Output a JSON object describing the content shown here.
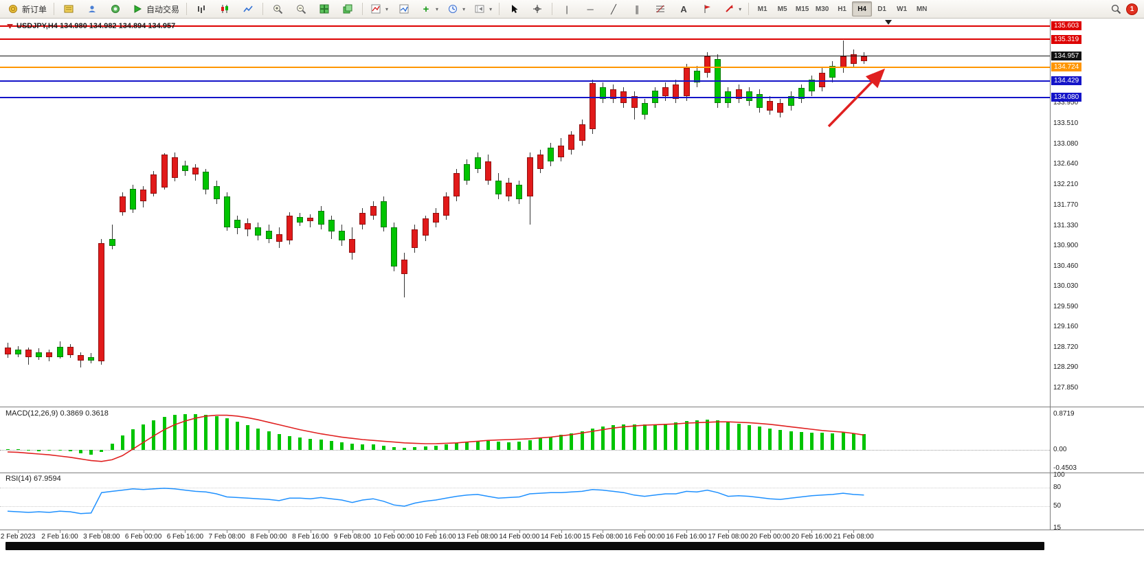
{
  "toolbar": {
    "new_order_label": "新订单",
    "autotrade_label": "自动交易",
    "timeframes": [
      "M1",
      "M5",
      "M15",
      "M30",
      "H1",
      "H4",
      "D1",
      "W1",
      "MN"
    ],
    "active_timeframe": "H4",
    "notification_count": "1",
    "glyphs": {
      "zoom_in": "+",
      "zoom_out": "−",
      "add_indicator": "+",
      "text_tool": "A",
      "vertical_line": "|",
      "horizontal_line": "─",
      "trend_line": "╱",
      "channel": "∥",
      "dropdown": "▾",
      "crosshair": "+"
    }
  },
  "chart_data": {
    "type": "candlestick",
    "symbol": "USDJPY",
    "timeframe": "H4",
    "header": "USDJPY,H4 134.980 134.982 134.894 134.957",
    "up_color": "#00c400",
    "down_color": "#e11a1a",
    "wick_color": "#333333",
    "price_axis_ticks": [
      "133.950",
      "133.510",
      "133.080",
      "132.640",
      "132.210",
      "131.770",
      "131.330",
      "130.900",
      "130.460",
      "130.030",
      "129.590",
      "129.160",
      "128.720",
      "128.290",
      "127.850"
    ],
    "price_badges": [
      {
        "value": "135.603",
        "color": "#dd0000",
        "kind": "resistance-line-label"
      },
      {
        "value": "135.319",
        "color": "#dd0000",
        "kind": "resistance-line-label"
      },
      {
        "value": "134.957",
        "color": "#111111",
        "kind": "current-price-label"
      },
      {
        "value": "134.724",
        "color": "#ff9500",
        "kind": "pivot-line-label"
      },
      {
        "value": "134.429",
        "color": "#1414c8",
        "kind": "support-line-label"
      },
      {
        "value": "134.080",
        "color": "#1414c8",
        "kind": "support-line-label"
      }
    ],
    "hlines": [
      {
        "price": 135.603,
        "color": "#dd0000",
        "w": 2,
        "name": "resistance-line"
      },
      {
        "price": 135.319,
        "color": "#dd0000",
        "w": 2,
        "name": "resistance-line"
      },
      {
        "price": 134.957,
        "color": "#111111",
        "w": 1,
        "name": "current-price-line"
      },
      {
        "price": 134.724,
        "color": "#ff9500",
        "w": 2,
        "name": "pivot-line"
      },
      {
        "price": 134.429,
        "color": "#1414c8",
        "w": 2,
        "name": "support-line"
      },
      {
        "price": 134.08,
        "color": "#1414c8",
        "w": 2,
        "name": "support-line"
      }
    ],
    "time_axis": [
      "2 Feb 2023",
      "2 Feb 16:00",
      "3 Feb 08:00",
      "6 Feb 00:00",
      "6 Feb 16:00",
      "7 Feb 08:00",
      "8 Feb 00:00",
      "8 Feb 16:00",
      "9 Feb 08:00",
      "10 Feb 00:00",
      "10 Feb 16:00",
      "13 Feb 08:00",
      "14 Feb 00:00",
      "14 Feb 16:00",
      "15 Feb 08:00",
      "16 Feb 00:00",
      "16 Feb 16:00",
      "17 Feb 08:00",
      "20 Feb 00:00",
      "20 Feb 16:00",
      "21 Feb 08:00"
    ],
    "candles": [
      [
        128.82,
        128.72,
        128.58,
        128.5,
        "r"
      ],
      [
        128.75,
        128.68,
        128.58,
        128.52,
        "g"
      ],
      [
        128.72,
        128.68,
        128.52,
        128.35,
        "r"
      ],
      [
        128.7,
        128.62,
        128.52,
        128.45,
        "g"
      ],
      [
        128.68,
        128.62,
        128.52,
        128.42,
        "r"
      ],
      [
        128.85,
        128.74,
        128.52,
        128.48,
        "g"
      ],
      [
        128.8,
        128.74,
        128.56,
        128.5,
        "r"
      ],
      [
        128.62,
        128.56,
        128.44,
        128.3,
        "r"
      ],
      [
        128.6,
        128.52,
        128.44,
        128.38,
        "g"
      ],
      [
        131.05,
        130.95,
        128.42,
        128.35,
        "r"
      ],
      [
        131.35,
        131.05,
        130.9,
        130.82,
        "g"
      ],
      [
        132.05,
        131.95,
        131.62,
        131.55,
        "r"
      ],
      [
        132.2,
        132.12,
        131.68,
        131.6,
        "g"
      ],
      [
        132.18,
        132.1,
        131.85,
        131.72,
        "r"
      ],
      [
        132.5,
        132.42,
        132.02,
        131.95,
        "r"
      ],
      [
        132.88,
        132.85,
        132.15,
        132.1,
        "r"
      ],
      [
        132.9,
        132.8,
        132.35,
        132.28,
        "r"
      ],
      [
        132.72,
        132.62,
        132.5,
        132.4,
        "g"
      ],
      [
        132.65,
        132.58,
        132.42,
        132.3,
        "r"
      ],
      [
        132.55,
        132.48,
        132.1,
        132.0,
        "g"
      ],
      [
        132.3,
        132.18,
        131.9,
        131.8,
        "g"
      ],
      [
        132.05,
        131.95,
        131.3,
        131.22,
        "g"
      ],
      [
        131.55,
        131.45,
        131.28,
        131.15,
        "g"
      ],
      [
        131.48,
        131.38,
        131.25,
        131.1,
        "r"
      ],
      [
        131.4,
        131.3,
        131.12,
        131.02,
        "g"
      ],
      [
        131.35,
        131.22,
        131.05,
        130.95,
        "g"
      ],
      [
        131.3,
        131.15,
        130.98,
        130.85,
        "r"
      ],
      [
        131.62,
        131.55,
        131.02,
        130.92,
        "r"
      ],
      [
        131.6,
        131.52,
        131.4,
        131.32,
        "g"
      ],
      [
        131.58,
        131.5,
        131.42,
        131.3,
        "r"
      ],
      [
        131.75,
        131.65,
        131.35,
        131.25,
        "g"
      ],
      [
        131.55,
        131.45,
        131.2,
        131.05,
        "g"
      ],
      [
        131.35,
        131.22,
        131.02,
        130.9,
        "g"
      ],
      [
        131.3,
        131.05,
        130.75,
        130.6,
        "r"
      ],
      [
        131.7,
        131.6,
        131.35,
        131.25,
        "r"
      ],
      [
        131.85,
        131.75,
        131.55,
        131.45,
        "r"
      ],
      [
        131.95,
        131.85,
        131.3,
        131.2,
        "g"
      ],
      [
        131.4,
        131.3,
        130.45,
        130.35,
        "g"
      ],
      [
        130.75,
        130.6,
        130.3,
        129.8,
        "r"
      ],
      [
        131.35,
        131.25,
        130.85,
        130.75,
        "r"
      ],
      [
        131.55,
        131.48,
        131.12,
        131.0,
        "r"
      ],
      [
        131.7,
        131.6,
        131.4,
        131.3,
        "r"
      ],
      [
        132.05,
        131.95,
        131.55,
        131.45,
        "r"
      ],
      [
        132.55,
        132.45,
        131.95,
        131.85,
        "r"
      ],
      [
        132.75,
        132.65,
        132.3,
        132.2,
        "g"
      ],
      [
        132.9,
        132.8,
        132.55,
        132.45,
        "g"
      ],
      [
        132.85,
        132.7,
        132.3,
        132.2,
        "r"
      ],
      [
        132.45,
        132.3,
        132.0,
        131.9,
        "g"
      ],
      [
        132.35,
        132.25,
        131.95,
        131.85,
        "r"
      ],
      [
        132.3,
        132.2,
        131.9,
        131.8,
        "g"
      ],
      [
        132.9,
        132.8,
        131.95,
        131.35,
        "r"
      ],
      [
        132.95,
        132.85,
        132.55,
        132.45,
        "r"
      ],
      [
        133.1,
        133.0,
        132.7,
        132.6,
        "g"
      ],
      [
        133.2,
        133.05,
        132.8,
        132.7,
        "r"
      ],
      [
        133.35,
        133.28,
        132.95,
        132.85,
        "r"
      ],
      [
        133.6,
        133.5,
        133.15,
        133.05,
        "r"
      ],
      [
        134.45,
        134.38,
        133.4,
        133.3,
        "r"
      ],
      [
        134.4,
        134.3,
        134.05,
        133.95,
        "g"
      ],
      [
        134.35,
        134.25,
        134.05,
        133.95,
        "r"
      ],
      [
        134.3,
        134.2,
        133.95,
        133.85,
        "r"
      ],
      [
        134.2,
        134.1,
        133.85,
        133.6,
        "r"
      ],
      [
        134.05,
        133.95,
        133.7,
        133.6,
        "g"
      ],
      [
        134.3,
        134.22,
        133.95,
        133.85,
        "g"
      ],
      [
        134.4,
        134.3,
        134.1,
        134.0,
        "r"
      ],
      [
        134.45,
        134.35,
        134.05,
        133.95,
        "r"
      ],
      [
        134.8,
        134.7,
        134.1,
        134.0,
        "r"
      ],
      [
        134.75,
        134.65,
        134.4,
        134.3,
        "g"
      ],
      [
        135.05,
        134.95,
        134.6,
        134.5,
        "r"
      ],
      [
        135.0,
        134.9,
        133.95,
        133.85,
        "g"
      ],
      [
        134.3,
        134.2,
        133.95,
        133.85,
        "g"
      ],
      [
        134.35,
        134.25,
        134.05,
        133.95,
        "r"
      ],
      [
        134.3,
        134.2,
        134.0,
        133.9,
        "g"
      ],
      [
        134.25,
        134.15,
        133.85,
        133.75,
        "g"
      ],
      [
        134.1,
        134.0,
        133.8,
        133.7,
        "r"
      ],
      [
        134.05,
        133.95,
        133.75,
        133.65,
        "r"
      ],
      [
        134.2,
        134.1,
        133.9,
        133.8,
        "g"
      ],
      [
        134.35,
        134.28,
        134.05,
        133.95,
        "g"
      ],
      [
        134.55,
        134.45,
        134.2,
        134.1,
        "g"
      ],
      [
        134.7,
        134.6,
        134.3,
        134.2,
        "r"
      ],
      [
        134.85,
        134.75,
        134.5,
        134.4,
        "g"
      ],
      [
        135.3,
        134.95,
        134.7,
        134.6,
        "r"
      ],
      [
        135.1,
        135.0,
        134.8,
        134.7,
        "r"
      ],
      [
        135.05,
        134.96,
        134.85,
        134.8,
        "r"
      ]
    ],
    "macd": {
      "label": "MACD(12,26,9) 0.3869 0.3618",
      "axis_ticks": [
        "0.8719",
        "0.00",
        "-0.4503"
      ],
      "hist_color": "#00c400",
      "signal_color": "#e02020",
      "hist": [
        0.02,
        0.01,
        -0.02,
        -0.03,
        -0.02,
        0.0,
        -0.04,
        -0.08,
        -0.12,
        -0.05,
        0.15,
        0.35,
        0.5,
        0.62,
        0.72,
        0.8,
        0.85,
        0.87,
        0.87,
        0.85,
        0.82,
        0.76,
        0.68,
        0.6,
        0.52,
        0.45,
        0.38,
        0.33,
        0.3,
        0.27,
        0.25,
        0.22,
        0.18,
        0.15,
        0.14,
        0.13,
        0.1,
        0.07,
        0.05,
        0.06,
        0.08,
        0.1,
        0.13,
        0.17,
        0.2,
        0.22,
        0.22,
        0.2,
        0.19,
        0.2,
        0.24,
        0.28,
        0.32,
        0.36,
        0.4,
        0.45,
        0.52,
        0.57,
        0.6,
        0.62,
        0.62,
        0.61,
        0.62,
        0.64,
        0.66,
        0.7,
        0.72,
        0.73,
        0.72,
        0.68,
        0.64,
        0.6,
        0.56,
        0.52,
        0.48,
        0.45,
        0.43,
        0.42,
        0.41,
        0.4,
        0.41,
        0.4,
        0.39
      ],
      "signal": [
        -0.05,
        -0.06,
        -0.08,
        -0.1,
        -0.12,
        -0.15,
        -0.18,
        -0.22,
        -0.26,
        -0.28,
        -0.24,
        -0.14,
        0.02,
        0.18,
        0.34,
        0.49,
        0.61,
        0.7,
        0.77,
        0.82,
        0.84,
        0.84,
        0.82,
        0.78,
        0.73,
        0.67,
        0.61,
        0.55,
        0.49,
        0.44,
        0.39,
        0.35,
        0.31,
        0.28,
        0.25,
        0.23,
        0.21,
        0.19,
        0.17,
        0.16,
        0.15,
        0.15,
        0.16,
        0.17,
        0.19,
        0.21,
        0.23,
        0.24,
        0.25,
        0.26,
        0.27,
        0.29,
        0.31,
        0.34,
        0.37,
        0.41,
        0.45,
        0.49,
        0.53,
        0.56,
        0.58,
        0.6,
        0.61,
        0.62,
        0.63,
        0.65,
        0.66,
        0.67,
        0.68,
        0.68,
        0.67,
        0.66,
        0.64,
        0.62,
        0.59,
        0.56,
        0.53,
        0.5,
        0.47,
        0.45,
        0.43,
        0.4,
        0.36
      ]
    },
    "rsi": {
      "label": "RSI(14) 67.9594",
      "axis_ticks": [
        "100",
        "80",
        "50",
        "15"
      ],
      "line_color": "#1e90ff",
      "values": [
        42,
        41,
        40,
        41,
        40,
        42,
        41,
        38,
        39,
        72,
        74,
        76,
        78,
        77,
        78,
        79,
        78,
        76,
        74,
        73,
        70,
        65,
        64,
        63,
        62,
        61,
        59,
        63,
        63,
        62,
        64,
        62,
        60,
        56,
        60,
        62,
        58,
        52,
        50,
        55,
        58,
        60,
        63,
        66,
        68,
        69,
        66,
        63,
        64,
        65,
        70,
        71,
        72,
        72,
        73,
        74,
        77,
        76,
        74,
        72,
        68,
        66,
        68,
        70,
        70,
        74,
        73,
        76,
        72,
        66,
        67,
        66,
        64,
        62,
        61,
        63,
        65,
        67,
        68,
        69,
        71,
        69,
        68
      ]
    }
  },
  "annotation_arrow": {
    "color": "#e02020"
  }
}
